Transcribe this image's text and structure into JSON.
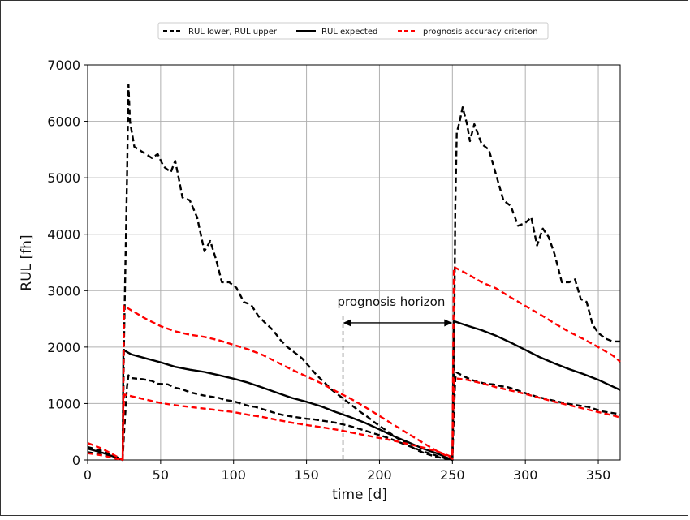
{
  "chart_data": {
    "type": "line",
    "title": "",
    "xlabel": "time [d]",
    "ylabel": "RUL [fh]",
    "xlim": [
      0,
      365
    ],
    "ylim": [
      0,
      7000
    ],
    "x_ticks": [
      "0",
      "50",
      "100",
      "150",
      "200",
      "250",
      "300",
      "350"
    ],
    "y_ticks": [
      "0",
      "1000",
      "2000",
      "3000",
      "4000",
      "5000",
      "6000",
      "7000"
    ],
    "grid": true,
    "legend_position": "top",
    "legend": [
      {
        "label": "RUL lower, RUL upper",
        "color": "#000000",
        "style": "dashed"
      },
      {
        "label": "RUL expected",
        "color": "#000000",
        "style": "solid"
      },
      {
        "label": "prognosis accuracy criterion",
        "color": "#ff0000",
        "style": "dashed"
      }
    ],
    "series": [
      {
        "role": "RUL upper",
        "color": "#000000",
        "style": "dashed",
        "points": [
          [
            0,
            230
          ],
          [
            10,
            160
          ],
          [
            20,
            50
          ],
          [
            24,
            0
          ],
          [
            25,
            2200
          ],
          [
            27,
            5000
          ],
          [
            28,
            6650
          ],
          [
            29,
            6000
          ],
          [
            32,
            5550
          ],
          [
            38,
            5450
          ],
          [
            44,
            5350
          ],
          [
            48,
            5420
          ],
          [
            52,
            5200
          ],
          [
            57,
            5100
          ],
          [
            60,
            5300
          ],
          [
            62,
            5050
          ],
          [
            65,
            4650
          ],
          [
            70,
            4600
          ],
          [
            75,
            4300
          ],
          [
            80,
            3700
          ],
          [
            84,
            3880
          ],
          [
            88,
            3550
          ],
          [
            92,
            3150
          ],
          [
            97,
            3150
          ],
          [
            102,
            3050
          ],
          [
            107,
            2800
          ],
          [
            112,
            2750
          ],
          [
            117,
            2550
          ],
          [
            122,
            2420
          ],
          [
            127,
            2300
          ],
          [
            132,
            2130
          ],
          [
            137,
            2000
          ],
          [
            142,
            1900
          ],
          [
            147,
            1800
          ],
          [
            152,
            1650
          ],
          [
            157,
            1500
          ],
          [
            162,
            1380
          ],
          [
            167,
            1250
          ],
          [
            172,
            1150
          ],
          [
            177,
            1050
          ],
          [
            182,
            950
          ],
          [
            187,
            850
          ],
          [
            192,
            760
          ],
          [
            197,
            660
          ],
          [
            202,
            570
          ],
          [
            207,
            480
          ],
          [
            212,
            390
          ],
          [
            217,
            310
          ],
          [
            222,
            230
          ],
          [
            227,
            160
          ],
          [
            232,
            110
          ],
          [
            237,
            70
          ],
          [
            242,
            40
          ],
          [
            247,
            15
          ],
          [
            250,
            0
          ],
          [
            251,
            1500
          ],
          [
            252,
            4500
          ],
          [
            253,
            5800
          ],
          [
            255,
            6000
          ],
          [
            257,
            6250
          ],
          [
            260,
            5950
          ],
          [
            262,
            5650
          ],
          [
            265,
            5950
          ],
          [
            270,
            5600
          ],
          [
            275,
            5500
          ],
          [
            280,
            5050
          ],
          [
            285,
            4600
          ],
          [
            290,
            4500
          ],
          [
            295,
            4150
          ],
          [
            300,
            4200
          ],
          [
            304,
            4300
          ],
          [
            308,
            3800
          ],
          [
            312,
            4100
          ],
          [
            316,
            3950
          ],
          [
            320,
            3650
          ],
          [
            325,
            3150
          ],
          [
            330,
            3150
          ],
          [
            334,
            3200
          ],
          [
            338,
            2850
          ],
          [
            342,
            2800
          ],
          [
            346,
            2400
          ],
          [
            350,
            2250
          ],
          [
            355,
            2150
          ],
          [
            360,
            2100
          ],
          [
            365,
            2100
          ]
        ]
      },
      {
        "role": "RUL lower",
        "color": "#000000",
        "style": "dashed",
        "points": [
          [
            0,
            140
          ],
          [
            10,
            90
          ],
          [
            20,
            30
          ],
          [
            24,
            0
          ],
          [
            25,
            500
          ],
          [
            27,
            1300
          ],
          [
            28,
            1500
          ],
          [
            30,
            1450
          ],
          [
            38,
            1430
          ],
          [
            44,
            1400
          ],
          [
            48,
            1350
          ],
          [
            55,
            1340
          ],
          [
            60,
            1280
          ],
          [
            65,
            1250
          ],
          [
            70,
            1200
          ],
          [
            75,
            1170
          ],
          [
            80,
            1140
          ],
          [
            85,
            1120
          ],
          [
            90,
            1100
          ],
          [
            95,
            1060
          ],
          [
            100,
            1040
          ],
          [
            105,
            1000
          ],
          [
            110,
            960
          ],
          [
            115,
            940
          ],
          [
            120,
            900
          ],
          [
            125,
            860
          ],
          [
            130,
            820
          ],
          [
            135,
            790
          ],
          [
            140,
            770
          ],
          [
            145,
            750
          ],
          [
            150,
            730
          ],
          [
            155,
            720
          ],
          [
            160,
            700
          ],
          [
            165,
            680
          ],
          [
            170,
            660
          ],
          [
            175,
            630
          ],
          [
            180,
            600
          ],
          [
            185,
            560
          ],
          [
            190,
            520
          ],
          [
            195,
            480
          ],
          [
            200,
            440
          ],
          [
            205,
            400
          ],
          [
            210,
            350
          ],
          [
            215,
            300
          ],
          [
            220,
            250
          ],
          [
            225,
            200
          ],
          [
            230,
            150
          ],
          [
            235,
            110
          ],
          [
            240,
            70
          ],
          [
            245,
            30
          ],
          [
            250,
            0
          ],
          [
            251,
            800
          ],
          [
            252,
            1450
          ],
          [
            253,
            1550
          ],
          [
            258,
            1480
          ],
          [
            263,
            1420
          ],
          [
            268,
            1380
          ],
          [
            273,
            1350
          ],
          [
            278,
            1340
          ],
          [
            283,
            1310
          ],
          [
            288,
            1290
          ],
          [
            293,
            1250
          ],
          [
            298,
            1200
          ],
          [
            303,
            1160
          ],
          [
            308,
            1120
          ],
          [
            313,
            1090
          ],
          [
            318,
            1060
          ],
          [
            323,
            1030
          ],
          [
            328,
            1000
          ],
          [
            333,
            980
          ],
          [
            338,
            960
          ],
          [
            343,
            940
          ],
          [
            348,
            900
          ],
          [
            353,
            860
          ],
          [
            358,
            840
          ],
          [
            363,
            820
          ],
          [
            365,
            800
          ]
        ]
      },
      {
        "role": "RUL expected",
        "color": "#000000",
        "style": "solid",
        "points": [
          [
            0,
            200
          ],
          [
            10,
            130
          ],
          [
            20,
            40
          ],
          [
            24,
            0
          ],
          [
            24.5,
            1950
          ],
          [
            30,
            1870
          ],
          [
            40,
            1800
          ],
          [
            50,
            1730
          ],
          [
            60,
            1650
          ],
          [
            70,
            1600
          ],
          [
            80,
            1560
          ],
          [
            90,
            1500
          ],
          [
            100,
            1440
          ],
          [
            110,
            1370
          ],
          [
            120,
            1280
          ],
          [
            130,
            1190
          ],
          [
            140,
            1100
          ],
          [
            150,
            1030
          ],
          [
            160,
            950
          ],
          [
            170,
            850
          ],
          [
            180,
            760
          ],
          [
            190,
            660
          ],
          [
            200,
            540
          ],
          [
            210,
            420
          ],
          [
            220,
            310
          ],
          [
            230,
            200
          ],
          [
            240,
            110
          ],
          [
            250,
            0
          ],
          [
            251,
            2460
          ],
          [
            260,
            2380
          ],
          [
            270,
            2300
          ],
          [
            280,
            2200
          ],
          [
            290,
            2080
          ],
          [
            300,
            1950
          ],
          [
            310,
            1820
          ],
          [
            320,
            1710
          ],
          [
            330,
            1610
          ],
          [
            340,
            1520
          ],
          [
            350,
            1420
          ],
          [
            360,
            1300
          ],
          [
            365,
            1240
          ]
        ]
      },
      {
        "role": "prognosis accuracy criterion upper",
        "color": "#ff0000",
        "style": "dashed",
        "points": [
          [
            0,
            300
          ],
          [
            10,
            200
          ],
          [
            20,
            60
          ],
          [
            24,
            0
          ],
          [
            25,
            2730
          ],
          [
            30,
            2650
          ],
          [
            40,
            2500
          ],
          [
            50,
            2370
          ],
          [
            60,
            2280
          ],
          [
            70,
            2220
          ],
          [
            80,
            2180
          ],
          [
            90,
            2120
          ],
          [
            100,
            2040
          ],
          [
            110,
            1960
          ],
          [
            120,
            1860
          ],
          [
            130,
            1730
          ],
          [
            140,
            1600
          ],
          [
            150,
            1480
          ],
          [
            160,
            1360
          ],
          [
            170,
            1220
          ],
          [
            180,
            1090
          ],
          [
            190,
            940
          ],
          [
            200,
            780
          ],
          [
            210,
            620
          ],
          [
            220,
            460
          ],
          [
            230,
            300
          ],
          [
            240,
            150
          ],
          [
            250,
            20
          ],
          [
            251,
            3420
          ],
          [
            260,
            3300
          ],
          [
            270,
            3150
          ],
          [
            280,
            3040
          ],
          [
            290,
            2880
          ],
          [
            300,
            2730
          ],
          [
            310,
            2580
          ],
          [
            320,
            2420
          ],
          [
            330,
            2270
          ],
          [
            340,
            2140
          ],
          [
            350,
            2000
          ],
          [
            360,
            1850
          ],
          [
            365,
            1740
          ]
        ]
      },
      {
        "role": "prognosis accuracy criterion lower",
        "color": "#ff0000",
        "style": "dashed",
        "points": [
          [
            0,
            120
          ],
          [
            10,
            80
          ],
          [
            20,
            20
          ],
          [
            24,
            0
          ],
          [
            25,
            1160
          ],
          [
            30,
            1130
          ],
          [
            40,
            1070
          ],
          [
            50,
            1010
          ],
          [
            60,
            970
          ],
          [
            70,
            940
          ],
          [
            80,
            910
          ],
          [
            90,
            880
          ],
          [
            100,
            850
          ],
          [
            110,
            800
          ],
          [
            120,
            760
          ],
          [
            130,
            710
          ],
          [
            140,
            660
          ],
          [
            150,
            620
          ],
          [
            160,
            580
          ],
          [
            170,
            540
          ],
          [
            180,
            490
          ],
          [
            190,
            440
          ],
          [
            200,
            390
          ],
          [
            210,
            340
          ],
          [
            220,
            280
          ],
          [
            230,
            220
          ],
          [
            240,
            150
          ],
          [
            250,
            50
          ],
          [
            251,
            1450
          ],
          [
            260,
            1420
          ],
          [
            270,
            1360
          ],
          [
            280,
            1290
          ],
          [
            290,
            1230
          ],
          [
            300,
            1170
          ],
          [
            310,
            1100
          ],
          [
            320,
            1030
          ],
          [
            330,
            970
          ],
          [
            340,
            910
          ],
          [
            350,
            850
          ],
          [
            360,
            790
          ],
          [
            365,
            750
          ]
        ]
      }
    ],
    "annotation": {
      "text": "prognosis horizon",
      "arrow_from_x": 175,
      "arrow_to_x": 250,
      "arrow_y": 2430,
      "marker_x": 175
    }
  }
}
